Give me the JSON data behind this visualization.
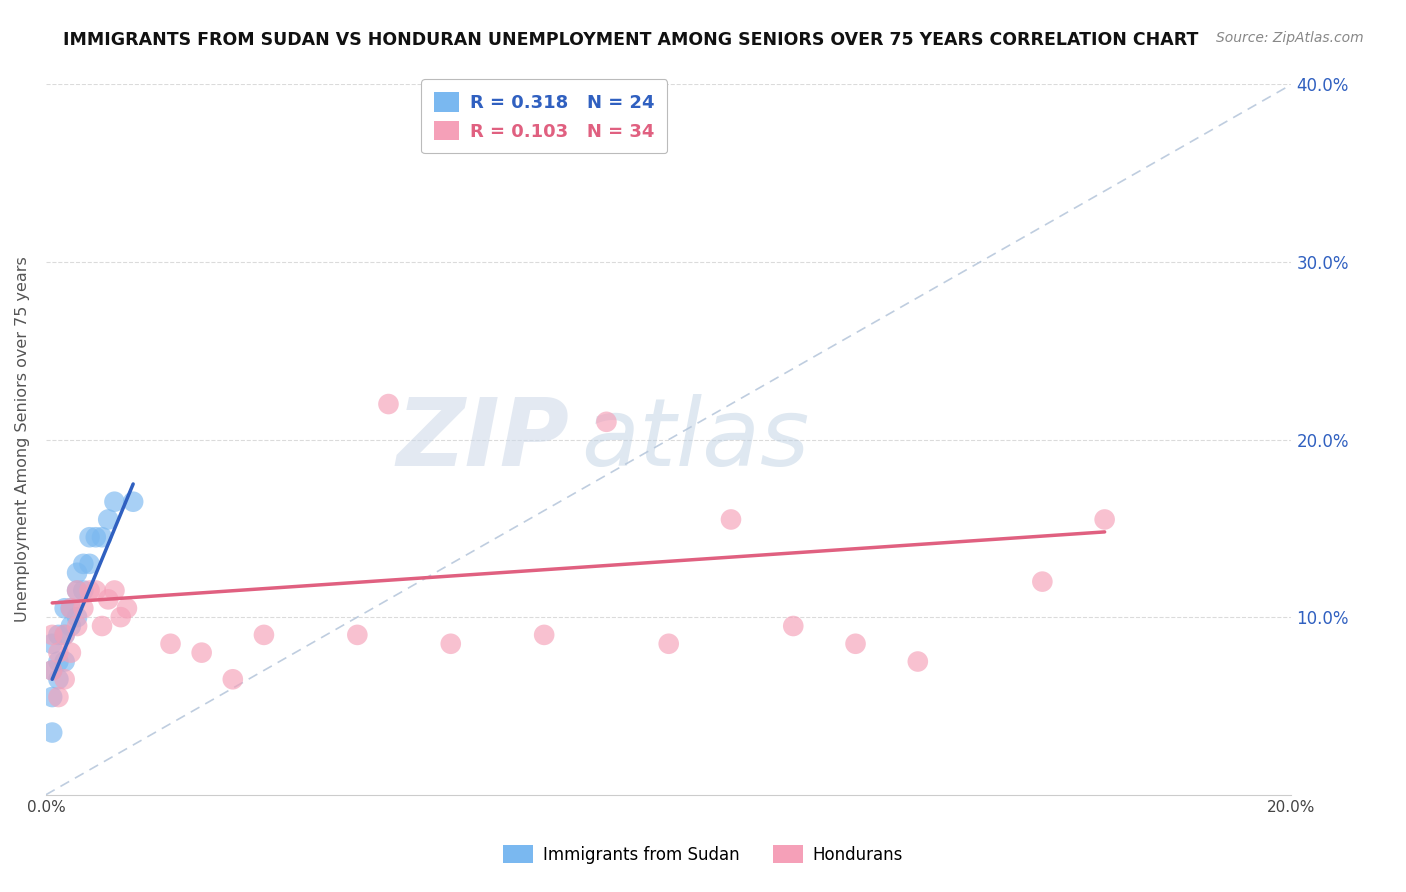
{
  "title": "IMMIGRANTS FROM SUDAN VS HONDURAN UNEMPLOYMENT AMONG SENIORS OVER 75 YEARS CORRELATION CHART",
  "source": "Source: ZipAtlas.com",
  "ylabel": "Unemployment Among Seniors over 75 years",
  "xlim": [
    0.0,
    0.2
  ],
  "ylim": [
    0.0,
    0.4
  ],
  "yticks": [
    0.0,
    0.1,
    0.2,
    0.3,
    0.4
  ],
  "ytick_labels_right": [
    "",
    "10.0%",
    "20.0%",
    "30.0%",
    "40.0%"
  ],
  "legend_r1": "R = 0.318",
  "legend_n1": "N = 24",
  "legend_r2": "R = 0.103",
  "legend_n2": "N = 34",
  "color_blue": "#7ab8f0",
  "color_pink": "#f5a0b8",
  "color_line_blue": "#3060c0",
  "color_line_pink": "#e06080",
  "color_diag": "#b8c8dc",
  "watermark_zip": "ZIP",
  "watermark_atlas": "atlas",
  "sudan_x": [
    0.001,
    0.001,
    0.001,
    0.001,
    0.002,
    0.002,
    0.002,
    0.003,
    0.003,
    0.003,
    0.004,
    0.004,
    0.005,
    0.005,
    0.005,
    0.006,
    0.006,
    0.007,
    0.007,
    0.008,
    0.009,
    0.01,
    0.011,
    0.014
  ],
  "sudan_y": [
    0.035,
    0.055,
    0.07,
    0.085,
    0.065,
    0.075,
    0.09,
    0.075,
    0.09,
    0.105,
    0.095,
    0.105,
    0.1,
    0.115,
    0.125,
    0.115,
    0.13,
    0.13,
    0.145,
    0.145,
    0.145,
    0.155,
    0.165,
    0.165
  ],
  "honduran_x": [
    0.001,
    0.001,
    0.002,
    0.002,
    0.003,
    0.003,
    0.004,
    0.004,
    0.005,
    0.005,
    0.006,
    0.007,
    0.008,
    0.009,
    0.01,
    0.011,
    0.012,
    0.013,
    0.02,
    0.025,
    0.03,
    0.035,
    0.05,
    0.055,
    0.065,
    0.08,
    0.09,
    0.1,
    0.11,
    0.12,
    0.13,
    0.14,
    0.16,
    0.17
  ],
  "honduran_y": [
    0.07,
    0.09,
    0.055,
    0.08,
    0.065,
    0.09,
    0.08,
    0.105,
    0.095,
    0.115,
    0.105,
    0.115,
    0.115,
    0.095,
    0.11,
    0.115,
    0.1,
    0.105,
    0.085,
    0.08,
    0.065,
    0.09,
    0.09,
    0.22,
    0.085,
    0.09,
    0.21,
    0.085,
    0.155,
    0.095,
    0.085,
    0.075,
    0.12,
    0.155
  ],
  "sudan_line_x": [
    0.001,
    0.014
  ],
  "sudan_line_y": [
    0.065,
    0.175
  ],
  "honduran_line_x": [
    0.001,
    0.17
  ],
  "honduran_line_y": [
    0.108,
    0.148
  ],
  "grid_color": "#d8d8d8",
  "bg_color": "#ffffff"
}
